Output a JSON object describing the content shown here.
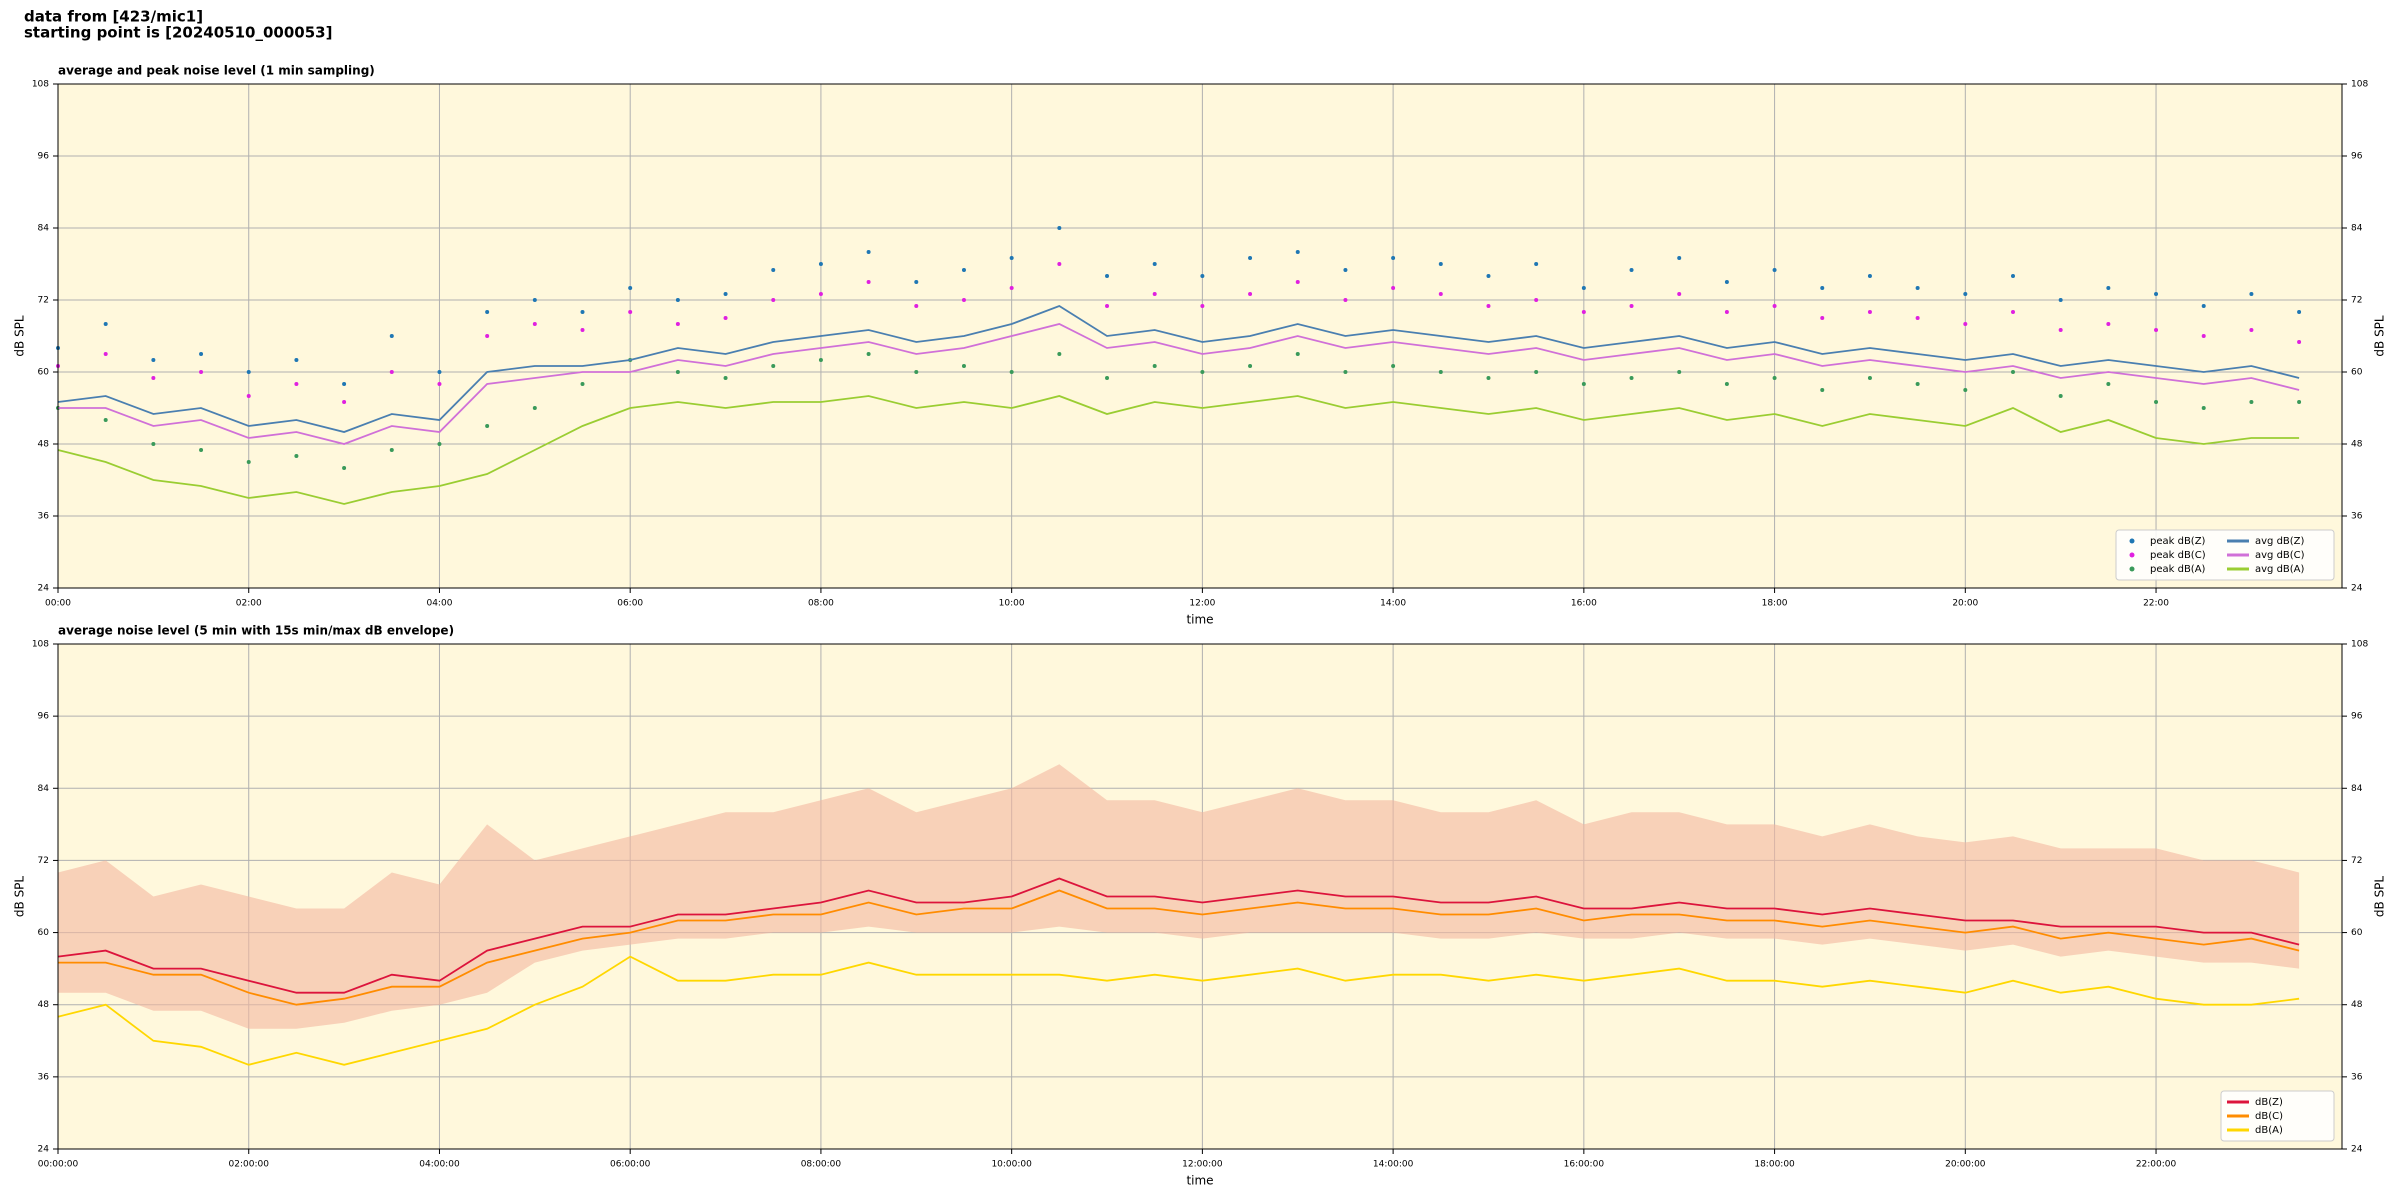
{
  "header": {
    "lines": [
      "data from [423/mic1]",
      "starting point is [20240510_000053]"
    ]
  },
  "chart_data": [
    {
      "type": "line",
      "title": "average and peak noise level (1 min sampling)",
      "xlabel": "time",
      "ylabel": "dB SPL",
      "x": [
        0,
        30,
        60,
        90,
        120,
        150,
        180,
        210,
        240,
        270,
        300,
        330,
        360,
        390,
        420,
        450,
        480,
        510,
        540,
        570,
        600,
        630,
        660,
        690,
        720,
        750,
        780,
        810,
        840,
        870,
        900,
        930,
        960,
        990,
        1020,
        1050,
        1080,
        1110,
        1140,
        1170,
        1200,
        1230,
        1260,
        1290,
        1320,
        1350,
        1380,
        1410
      ],
      "xlim": [
        0,
        1437
      ],
      "ylim": [
        24,
        108
      ],
      "xticks": [
        {
          "value": 0,
          "label": "00:00"
        },
        {
          "value": 120,
          "label": "02:00"
        },
        {
          "value": 240,
          "label": "04:00"
        },
        {
          "value": 360,
          "label": "06:00"
        },
        {
          "value": 480,
          "label": "08:00"
        },
        {
          "value": 600,
          "label": "10:00"
        },
        {
          "value": 720,
          "label": "12:00"
        },
        {
          "value": 840,
          "label": "14:00"
        },
        {
          "value": 960,
          "label": "16:00"
        },
        {
          "value": 1080,
          "label": "18:00"
        },
        {
          "value": 1200,
          "label": "20:00"
        },
        {
          "value": 1320,
          "label": "22:00"
        }
      ],
      "yticks": [
        24,
        36,
        48,
        60,
        72,
        84,
        96,
        108
      ],
      "grid": true,
      "legend": "lower right",
      "legend_columns": 2,
      "background": "#fff8dc",
      "series": [
        {
          "name": "peak dB(Z)",
          "style": "scatter",
          "color": "#1f77b4",
          "values": [
            64,
            68,
            62,
            63,
            60,
            62,
            58,
            66,
            60,
            70,
            72,
            70,
            74,
            72,
            73,
            77,
            78,
            80,
            75,
            77,
            79,
            84,
            76,
            78,
            76,
            79,
            80,
            77,
            79,
            78,
            76,
            78,
            74,
            77,
            79,
            75,
            77,
            74,
            76,
            74,
            73,
            76,
            72,
            74,
            73,
            71,
            73,
            70
          ]
        },
        {
          "name": "peak dB(C)",
          "style": "scatter",
          "color": "#e020e0",
          "values": [
            61,
            63,
            59,
            60,
            56,
            58,
            55,
            60,
            58,
            66,
            68,
            67,
            70,
            68,
            69,
            72,
            73,
            75,
            71,
            72,
            74,
            78,
            71,
            73,
            71,
            73,
            75,
            72,
            74,
            73,
            71,
            72,
            70,
            71,
            73,
            70,
            71,
            69,
            70,
            69,
            68,
            70,
            67,
            68,
            67,
            66,
            67,
            65
          ]
        },
        {
          "name": "peak dB(A)",
          "style": "scatter",
          "color": "#3a9a5a",
          "values": [
            54,
            52,
            48,
            47,
            45,
            46,
            44,
            47,
            48,
            51,
            54,
            58,
            62,
            60,
            59,
            61,
            62,
            63,
            60,
            61,
            60,
            63,
            59,
            61,
            60,
            61,
            63,
            60,
            61,
            60,
            59,
            60,
            58,
            59,
            60,
            58,
            59,
            57,
            59,
            58,
            57,
            60,
            56,
            58,
            55,
            54,
            55,
            55
          ]
        },
        {
          "name": "avg dB(Z)",
          "style": "line",
          "color": "#4a7fb0",
          "values": [
            55,
            56,
            53,
            54,
            51,
            52,
            50,
            53,
            52,
            60,
            61,
            61,
            62,
            64,
            63,
            65,
            66,
            67,
            65,
            66,
            68,
            71,
            66,
            67,
            65,
            66,
            68,
            66,
            67,
            66,
            65,
            66,
            64,
            65,
            66,
            64,
            65,
            63,
            64,
            63,
            62,
            63,
            61,
            62,
            61,
            60,
            61,
            59
          ]
        },
        {
          "name": "avg dB(C)",
          "style": "line",
          "color": "#d070d8",
          "values": [
            54,
            54,
            51,
            52,
            49,
            50,
            48,
            51,
            50,
            58,
            59,
            60,
            60,
            62,
            61,
            63,
            64,
            65,
            63,
            64,
            66,
            68,
            64,
            65,
            63,
            64,
            66,
            64,
            65,
            64,
            63,
            64,
            62,
            63,
            64,
            62,
            63,
            61,
            62,
            61,
            60,
            61,
            59,
            60,
            59,
            58,
            59,
            57
          ]
        },
        {
          "name": "avg dB(A)",
          "style": "line",
          "color": "#9acd32",
          "values": [
            47,
            45,
            42,
            41,
            39,
            40,
            38,
            40,
            41,
            43,
            47,
            51,
            54,
            55,
            54,
            55,
            55,
            56,
            54,
            55,
            54,
            56,
            53,
            55,
            54,
            55,
            56,
            54,
            55,
            54,
            53,
            54,
            52,
            53,
            54,
            52,
            53,
            51,
            53,
            52,
            51,
            54,
            50,
            52,
            49,
            48,
            49,
            49
          ]
        }
      ]
    },
    {
      "type": "line",
      "title": "average noise level (5 min with 15s min/max dB envelope)",
      "xlabel": "time",
      "ylabel": "dB SPL",
      "x": [
        0,
        30,
        60,
        90,
        120,
        150,
        180,
        210,
        240,
        270,
        300,
        330,
        360,
        390,
        420,
        450,
        480,
        510,
        540,
        570,
        600,
        630,
        660,
        690,
        720,
        750,
        780,
        810,
        840,
        870,
        900,
        930,
        960,
        990,
        1020,
        1050,
        1080,
        1110,
        1140,
        1170,
        1200,
        1230,
        1260,
        1290,
        1320,
        1350,
        1380,
        1410
      ],
      "xlim": [
        0,
        1437
      ],
      "ylim": [
        24,
        108
      ],
      "xticks": [
        {
          "value": 0,
          "label": "00:00:00"
        },
        {
          "value": 120,
          "label": "02:00:00"
        },
        {
          "value": 240,
          "label": "04:00:00"
        },
        {
          "value": 360,
          "label": "06:00:00"
        },
        {
          "value": 480,
          "label": "08:00:00"
        },
        {
          "value": 600,
          "label": "10:00:00"
        },
        {
          "value": 720,
          "label": "12:00:00"
        },
        {
          "value": 840,
          "label": "14:00:00"
        },
        {
          "value": 960,
          "label": "16:00:00"
        },
        {
          "value": 1080,
          "label": "18:00:00"
        },
        {
          "value": 1200,
          "label": "20:00:00"
        },
        {
          "value": 1320,
          "label": "22:00:00"
        }
      ],
      "yticks": [
        24,
        36,
        48,
        60,
        72,
        84,
        96,
        108
      ],
      "grid": true,
      "legend": "lower right",
      "legend_columns": 1,
      "background": "#fff8dc",
      "envelope": {
        "color": "#f4b8a0",
        "min": [
          50,
          50,
          47,
          47,
          44,
          44,
          45,
          47,
          48,
          50,
          55,
          57,
          58,
          59,
          59,
          60,
          60,
          61,
          60,
          60,
          60,
          61,
          60,
          60,
          59,
          60,
          60,
          60,
          60,
          59,
          59,
          60,
          59,
          59,
          60,
          59,
          59,
          58,
          59,
          58,
          57,
          58,
          56,
          57,
          56,
          55,
          55,
          54
        ],
        "max": [
          70,
          72,
          66,
          68,
          66,
          64,
          64,
          70,
          68,
          78,
          72,
          74,
          76,
          78,
          80,
          80,
          82,
          84,
          80,
          82,
          84,
          88,
          82,
          82,
          80,
          82,
          84,
          82,
          82,
          80,
          80,
          82,
          78,
          80,
          80,
          78,
          78,
          76,
          78,
          76,
          75,
          76,
          74,
          74,
          74,
          72,
          72,
          70
        ]
      },
      "series": [
        {
          "name": "dB(Z)",
          "style": "line",
          "color": "#dc143c",
          "values": [
            56,
            57,
            54,
            54,
            52,
            50,
            50,
            53,
            52,
            57,
            59,
            61,
            61,
            63,
            63,
            64,
            65,
            67,
            65,
            65,
            66,
            69,
            66,
            66,
            65,
            66,
            67,
            66,
            66,
            65,
            65,
            66,
            64,
            64,
            65,
            64,
            64,
            63,
            64,
            63,
            62,
            62,
            61,
            61,
            61,
            60,
            60,
            58
          ]
        },
        {
          "name": "dB(C)",
          "style": "line",
          "color": "#ff8c00",
          "values": [
            55,
            55,
            53,
            53,
            50,
            48,
            49,
            51,
            51,
            55,
            57,
            59,
            60,
            62,
            62,
            63,
            63,
            65,
            63,
            64,
            64,
            67,
            64,
            64,
            63,
            64,
            65,
            64,
            64,
            63,
            63,
            64,
            62,
            63,
            63,
            62,
            62,
            61,
            62,
            61,
            60,
            61,
            59,
            60,
            59,
            58,
            59,
            57
          ]
        },
        {
          "name": "dB(A)",
          "style": "line",
          "color": "#ffd700",
          "values": [
            46,
            48,
            42,
            41,
            38,
            40,
            38,
            40,
            42,
            44,
            48,
            51,
            56,
            52,
            52,
            53,
            53,
            55,
            53,
            53,
            53,
            53,
            52,
            53,
            52,
            53,
            54,
            52,
            53,
            53,
            52,
            53,
            52,
            53,
            54,
            52,
            52,
            51,
            52,
            51,
            50,
            52,
            50,
            51,
            49,
            48,
            48,
            49
          ]
        }
      ]
    }
  ]
}
